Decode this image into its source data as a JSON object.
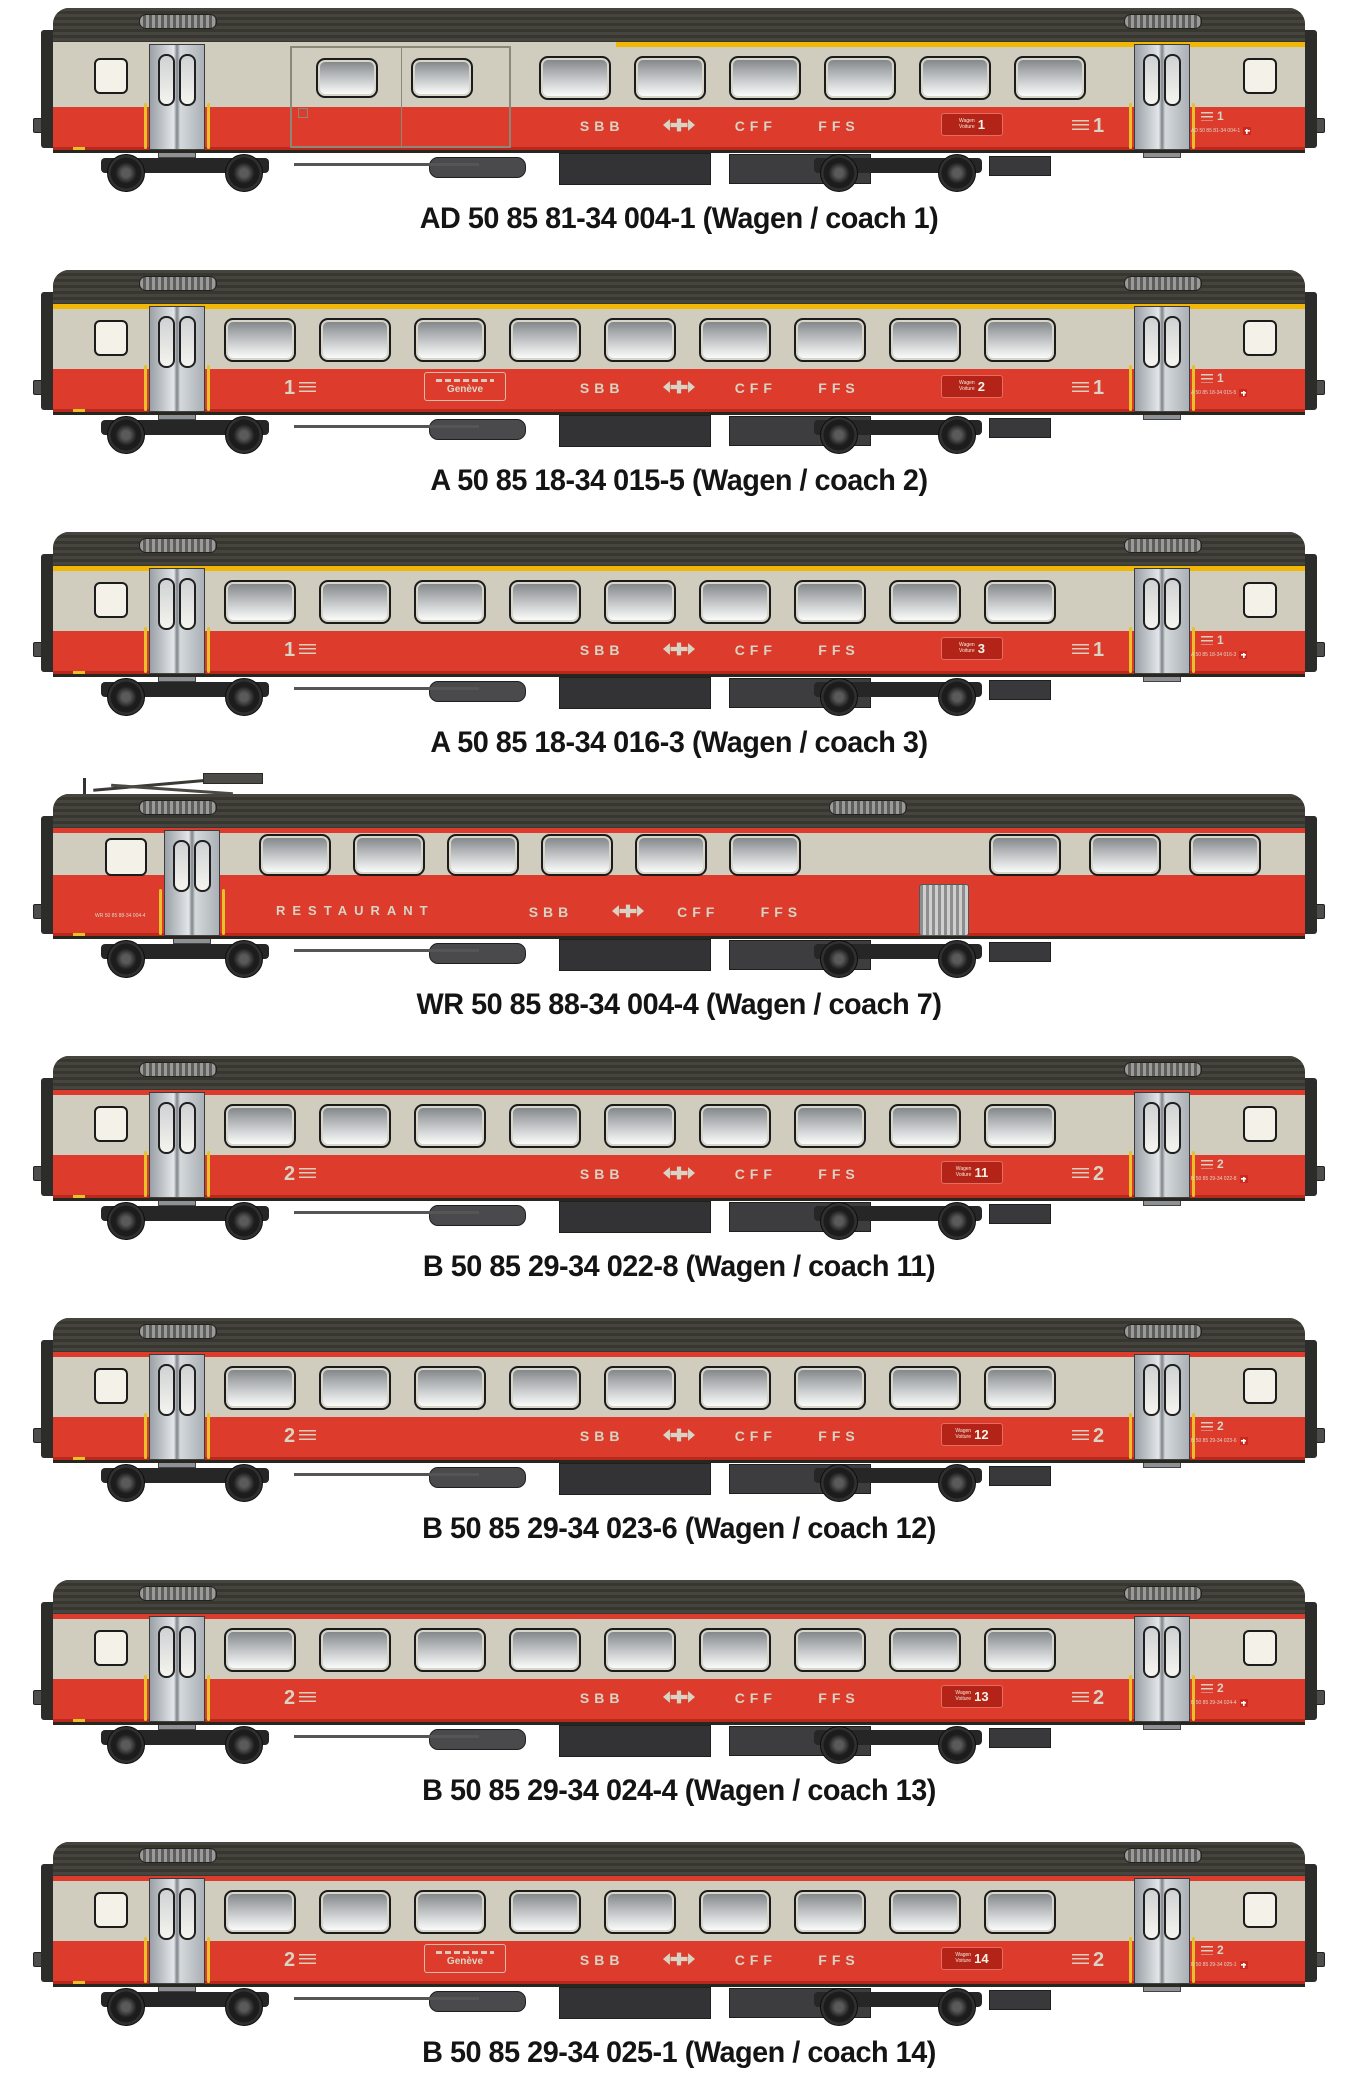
{
  "colors": {
    "body_cream": "#d0cdbf",
    "band_red": "#dd3b2c",
    "stripe_yellow": "#f2b705",
    "roof_dark": "#3b3a34",
    "caption_text": "#141414",
    "marking_cream": "#d8d4c5",
    "plate_red": "#b32317"
  },
  "branding": {
    "sbb": "SBB",
    "cff": "CFF",
    "ffs": "FFS",
    "logo": "sbb-arrow-cross"
  },
  "plate_labels": {
    "line1": "Wagen",
    "line2": "Voiture"
  },
  "coaches": [
    {
      "caption": "AD 50 85 81-34 004-1 (Wagen / coach 1)",
      "type": "AD",
      "class": "1",
      "stripe": "yellow",
      "plate_number": "1",
      "route_board": null,
      "restaurant": null,
      "uic": "AD 50 85 81-34 004-1"
    },
    {
      "caption": "A 50 85 18-34 015-5 (Wagen / coach 2)",
      "type": "A",
      "class": "1",
      "stripe": "yellow",
      "plate_number": "2",
      "route_board": "Genève",
      "restaurant": null,
      "uic": "A 50 85 18-34 015-5"
    },
    {
      "caption": "A 50 85 18-34 016-3 (Wagen / coach 3)",
      "type": "A",
      "class": "1",
      "stripe": "yellow",
      "plate_number": "3",
      "route_board": null,
      "restaurant": null,
      "uic": "A 50 85 18-34 016-3"
    },
    {
      "caption": "WR 50 85 88-34 004-4 (Wagen / coach 7)",
      "type": "WR",
      "class": null,
      "stripe": "red",
      "plate_number": null,
      "route_board": null,
      "restaurant": "RESTAURANT",
      "uic": "WR 50 85 88-34 004-4"
    },
    {
      "caption": "B 50 85 29-34 022-8 (Wagen / coach 11)",
      "type": "B",
      "class": "2",
      "stripe": "red",
      "plate_number": "11",
      "route_board": null,
      "restaurant": null,
      "uic": "B 50 85 29-34 022-8"
    },
    {
      "caption": "B 50 85 29-34 023-6 (Wagen / coach 12)",
      "type": "B",
      "class": "2",
      "stripe": "red",
      "plate_number": "12",
      "route_board": null,
      "restaurant": null,
      "uic": "B 50 85 29-34 023-6"
    },
    {
      "caption": "B 50 85 29-34 024-4 (Wagen / coach 13)",
      "type": "B",
      "class": "2",
      "stripe": "red",
      "plate_number": "13",
      "route_board": null,
      "restaurant": null,
      "uic": "B 50 85 29-34 024-4"
    },
    {
      "caption": "B 50 85 29-34 025-1 (Wagen / coach 14)",
      "type": "B",
      "class": "2",
      "stripe": "red",
      "plate_number": "14",
      "route_board": "Genève",
      "restaurant": null,
      "uic": "B 50 85 29-34 025-1"
    }
  ]
}
